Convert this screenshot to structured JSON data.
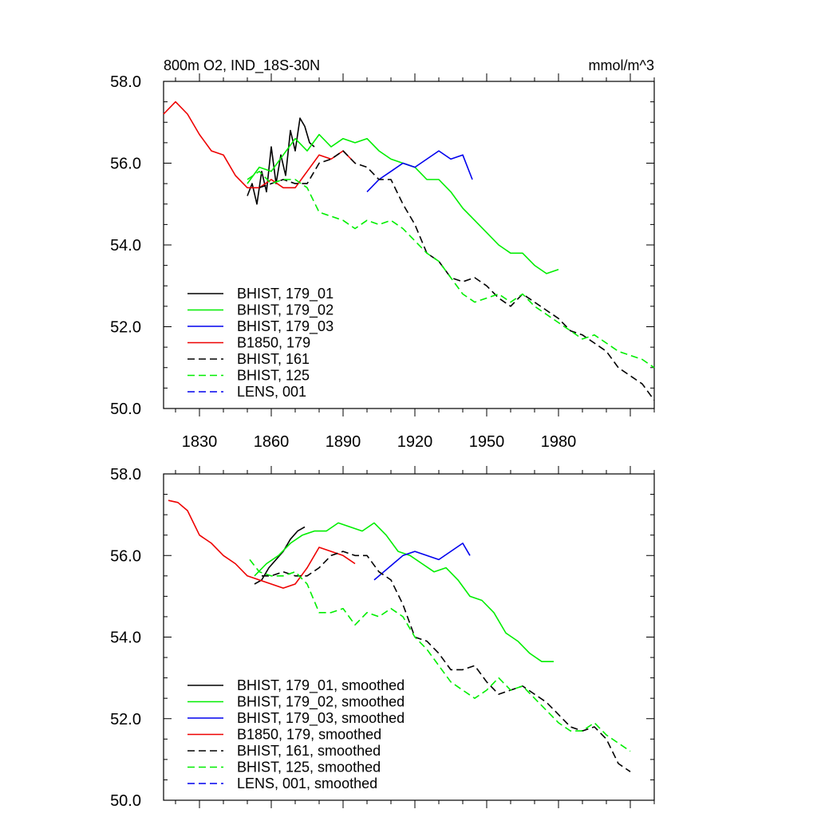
{
  "chart_data": [
    {
      "type": "line",
      "title": "800m O2, IND_18S-30N",
      "units": "mmol/m^3",
      "xlabel": "",
      "ylabel": "",
      "xlim": [
        1815,
        2020
      ],
      "ylim": [
        50.0,
        58.0
      ],
      "xticks": [
        1830,
        1860,
        1890,
        1920,
        1950,
        1980
      ],
      "yticks": [
        50.0,
        52.0,
        54.0,
        56.0,
        58.0
      ],
      "ytick_labels": [
        "50.0",
        "52.0",
        "54.0",
        "56.0",
        "58.0"
      ],
      "grid": false,
      "legend_position": "bottom-left",
      "series": [
        {
          "name": "BHIST, 179_01",
          "color": "#000000",
          "dash": "solid",
          "x": [
            1850,
            1852,
            1854,
            1856,
            1858,
            1860,
            1862,
            1864,
            1866,
            1868,
            1870,
            1872,
            1874,
            1876,
            1878
          ],
          "y": [
            55.2,
            55.5,
            55.0,
            55.8,
            55.3,
            56.4,
            55.5,
            56.2,
            55.7,
            56.8,
            56.3,
            57.1,
            56.9,
            56.5,
            56.4
          ]
        },
        {
          "name": "BHIST, 179_02",
          "color": "#00ee00",
          "dash": "solid",
          "x": [
            1850,
            1855,
            1860,
            1865,
            1870,
            1875,
            1880,
            1885,
            1890,
            1895,
            1900,
            1905,
            1910,
            1915,
            1920,
            1925,
            1930,
            1935,
            1940,
            1945,
            1950,
            1955,
            1960,
            1965,
            1970,
            1975,
            1980
          ],
          "y": [
            55.5,
            55.9,
            55.8,
            56.2,
            56.6,
            56.3,
            56.7,
            56.4,
            56.6,
            56.5,
            56.6,
            56.3,
            56.1,
            56.0,
            55.9,
            55.6,
            55.6,
            55.3,
            54.9,
            54.6,
            54.3,
            54.0,
            53.8,
            53.8,
            53.5,
            53.3,
            53.4
          ]
        },
        {
          "name": "BHIST, 179_03",
          "color": "#0000ee",
          "dash": "solid",
          "x": [
            1900,
            1905,
            1910,
            1915,
            1920,
            1925,
            1930,
            1935,
            1940,
            1944
          ],
          "y": [
            55.3,
            55.6,
            55.8,
            56.0,
            55.9,
            56.1,
            56.3,
            56.1,
            56.2,
            55.6
          ]
        },
        {
          "name": "B1850, 179",
          "color": "#ee0000",
          "dash": "solid",
          "x": [
            1815,
            1820,
            1825,
            1830,
            1835,
            1840,
            1845,
            1850,
            1855,
            1860,
            1865,
            1870,
            1875,
            1880,
            1885,
            1890,
            1895
          ],
          "y": [
            57.2,
            57.5,
            57.2,
            56.7,
            56.3,
            56.2,
            55.7,
            55.4,
            55.4,
            55.6,
            55.4,
            55.4,
            55.8,
            56.2,
            56.1,
            56.3,
            56.0
          ]
        },
        {
          "name": "BHIST, 161",
          "color": "#000000",
          "dash": "dashed",
          "x": [
            1855,
            1860,
            1865,
            1870,
            1875,
            1880,
            1885,
            1890,
            1895,
            1900,
            1905,
            1910,
            1915,
            1920,
            1925,
            1930,
            1935,
            1940,
            1945,
            1950,
            1955,
            1960,
            1965,
            1970,
            1975,
            1980,
            1985,
            1990,
            1995,
            2000,
            2005,
            2010,
            2015,
            2020
          ],
          "y": [
            55.4,
            55.5,
            55.6,
            55.5,
            55.5,
            56.0,
            56.1,
            56.3,
            56.0,
            55.9,
            55.6,
            55.6,
            55.0,
            54.5,
            53.8,
            53.6,
            53.2,
            53.1,
            53.2,
            53.0,
            52.7,
            52.5,
            52.8,
            52.6,
            52.4,
            52.2,
            51.9,
            51.8,
            51.6,
            51.4,
            51.0,
            50.8,
            50.6,
            50.2
          ]
        },
        {
          "name": "BHIST, 125",
          "color": "#00ee00",
          "dash": "dashed",
          "x": [
            1850,
            1855,
            1860,
            1865,
            1870,
            1875,
            1880,
            1885,
            1890,
            1895,
            1900,
            1905,
            1910,
            1915,
            1920,
            1925,
            1930,
            1935,
            1940,
            1945,
            1950,
            1955,
            1960,
            1965,
            1970,
            1975,
            1980,
            1985,
            1990,
            1995,
            2000,
            2005,
            2010,
            2015,
            2020
          ],
          "y": [
            55.6,
            55.8,
            55.5,
            55.6,
            55.6,
            55.4,
            54.8,
            54.7,
            54.6,
            54.4,
            54.6,
            54.5,
            54.6,
            54.4,
            54.1,
            53.8,
            53.6,
            53.2,
            52.8,
            52.6,
            52.7,
            52.8,
            52.6,
            52.8,
            52.5,
            52.3,
            52.1,
            51.9,
            51.7,
            51.8,
            51.6,
            51.4,
            51.3,
            51.2,
            51.0
          ]
        },
        {
          "name": "LENS, 001",
          "color": "#0000ee",
          "dash": "dashed",
          "x": [],
          "y": []
        }
      ]
    },
    {
      "type": "line",
      "title": "",
      "xlabel": "",
      "ylabel": "",
      "xlim": [
        1815,
        2020
      ],
      "ylim": [
        50.0,
        58.0
      ],
      "xticks": [
        1830,
        1860,
        1890,
        1920,
        1950,
        1980
      ],
      "yticks": [
        50.0,
        52.0,
        54.0,
        56.0,
        58.0
      ],
      "ytick_labels": [
        "50.0",
        "52.0",
        "54.0",
        "56.0",
        "58.0"
      ],
      "grid": false,
      "legend_position": "bottom-left",
      "series": [
        {
          "name": "BHIST, 179_01, smoothed",
          "color": "#000000",
          "dash": "solid",
          "x": [
            1853,
            1856,
            1859,
            1862,
            1865,
            1868,
            1871,
            1874
          ],
          "y": [
            55.3,
            55.4,
            55.7,
            55.9,
            56.1,
            56.4,
            56.6,
            56.7
          ]
        },
        {
          "name": "BHIST, 179_02, smoothed",
          "color": "#00ee00",
          "dash": "solid",
          "x": [
            1853,
            1858,
            1863,
            1868,
            1873,
            1878,
            1883,
            1888,
            1893,
            1898,
            1903,
            1908,
            1913,
            1918,
            1923,
            1928,
            1933,
            1938,
            1943,
            1948,
            1953,
            1958,
            1963,
            1968,
            1973,
            1978
          ],
          "y": [
            55.5,
            55.8,
            56.0,
            56.3,
            56.5,
            56.6,
            56.6,
            56.8,
            56.7,
            56.6,
            56.8,
            56.5,
            56.1,
            56.0,
            55.8,
            55.6,
            55.7,
            55.4,
            55.0,
            54.9,
            54.6,
            54.1,
            53.9,
            53.6,
            53.4,
            53.4
          ]
        },
        {
          "name": "BHIST, 179_03, smoothed",
          "color": "#0000ee",
          "dash": "solid",
          "x": [
            1903,
            1907,
            1911,
            1915,
            1920,
            1925,
            1930,
            1935,
            1940,
            1943
          ],
          "y": [
            55.4,
            55.6,
            55.8,
            56.0,
            56.1,
            56.0,
            55.9,
            56.1,
            56.3,
            56.0
          ]
        },
        {
          "name": "B1850, 179, smoothed",
          "color": "#ee0000",
          "dash": "solid",
          "x": [
            1817,
            1821,
            1825,
            1830,
            1835,
            1840,
            1845,
            1850,
            1855,
            1860,
            1865,
            1870,
            1875,
            1880,
            1885,
            1890,
            1895
          ],
          "y": [
            57.35,
            57.3,
            57.1,
            56.5,
            56.3,
            56.0,
            55.8,
            55.5,
            55.4,
            55.3,
            55.2,
            55.3,
            55.7,
            56.2,
            56.1,
            56.0,
            55.8
          ]
        },
        {
          "name": "BHIST, 161, smoothed",
          "color": "#000000",
          "dash": "dashed",
          "x": [
            1856,
            1860,
            1865,
            1870,
            1875,
            1880,
            1885,
            1890,
            1895,
            1900,
            1905,
            1910,
            1915,
            1920,
            1925,
            1930,
            1935,
            1940,
            1945,
            1950,
            1955,
            1960,
            1965,
            1970,
            1975,
            1980,
            1985,
            1990,
            1995,
            2000,
            2005,
            2010
          ],
          "y": [
            55.5,
            55.5,
            55.6,
            55.5,
            55.5,
            55.7,
            56.0,
            56.1,
            56.0,
            56.0,
            55.6,
            55.4,
            54.8,
            54.0,
            53.9,
            53.6,
            53.2,
            53.2,
            53.3,
            52.9,
            52.6,
            52.7,
            52.8,
            52.6,
            52.4,
            52.1,
            51.8,
            51.7,
            51.8,
            51.5,
            50.9,
            50.7
          ]
        },
        {
          "name": "BHIST, 125, smoothed",
          "color": "#00ee00",
          "dash": "dashed",
          "x": [
            1851,
            1855,
            1860,
            1865,
            1870,
            1875,
            1880,
            1885,
            1890,
            1895,
            1900,
            1905,
            1910,
            1915,
            1920,
            1925,
            1930,
            1935,
            1940,
            1945,
            1950,
            1955,
            1960,
            1965,
            1970,
            1975,
            1980,
            1985,
            1990,
            1995,
            2000,
            2005,
            2010
          ],
          "y": [
            55.9,
            55.6,
            55.5,
            55.5,
            55.6,
            55.3,
            54.6,
            54.6,
            54.7,
            54.3,
            54.6,
            54.5,
            54.7,
            54.5,
            54.0,
            53.7,
            53.3,
            52.9,
            52.7,
            52.5,
            52.7,
            53.0,
            52.7,
            52.8,
            52.5,
            52.2,
            51.9,
            51.7,
            51.7,
            51.9,
            51.6,
            51.4,
            51.2
          ]
        },
        {
          "name": "LENS, 001, smoothed",
          "color": "#0000ee",
          "dash": "dashed",
          "x": [],
          "y": []
        }
      ]
    }
  ]
}
